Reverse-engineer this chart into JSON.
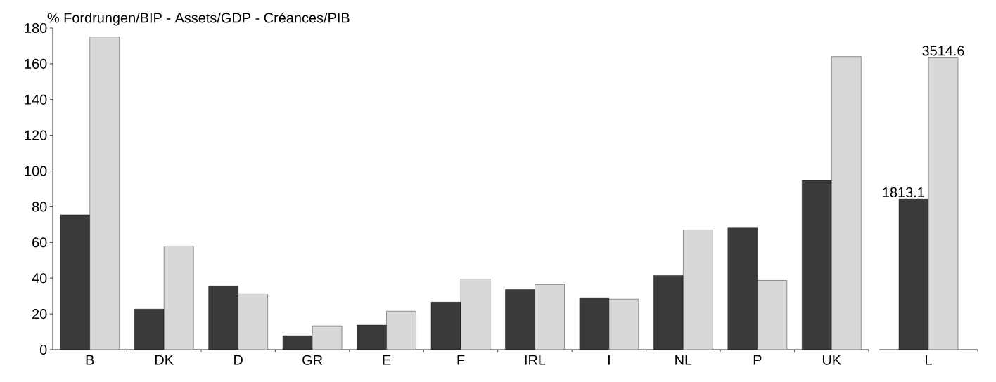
{
  "chart_data": [
    {
      "type": "bar",
      "ylabel": "% Fordrungen/BIP - Assets/GDP - Créances/PIB",
      "categories": [
        "B",
        "DK",
        "D",
        "GR",
        "E",
        "F",
        "IRL",
        "I",
        "NL",
        "P",
        "UK"
      ],
      "series": [
        {
          "color": "#3a3a3a",
          "values": [
            75.5,
            22.7,
            35.6,
            7.8,
            13.7,
            26.6,
            33.6,
            29,
            41.5,
            68.5,
            94.7
          ]
        },
        {
          "color": "#d8d8d8",
          "values": [
            175,
            58,
            31.3,
            13.3,
            21.5,
            39.5,
            36.4,
            28.2,
            67,
            38.7,
            164
          ]
        }
      ],
      "ylim": [
        0,
        180
      ],
      "yticks": [
        0,
        20,
        40,
        60,
        80,
        100,
        120,
        140,
        160,
        180
      ]
    },
    {
      "type": "bar",
      "categories": [
        "L"
      ],
      "series": [
        {
          "color": "#3a3a3a",
          "values": [
            1813.1
          ]
        },
        {
          "color": "#d8d8d8",
          "values": [
            3514.6
          ]
        }
      ],
      "tick_labels": "x",
      "data_labels": true
    }
  ]
}
